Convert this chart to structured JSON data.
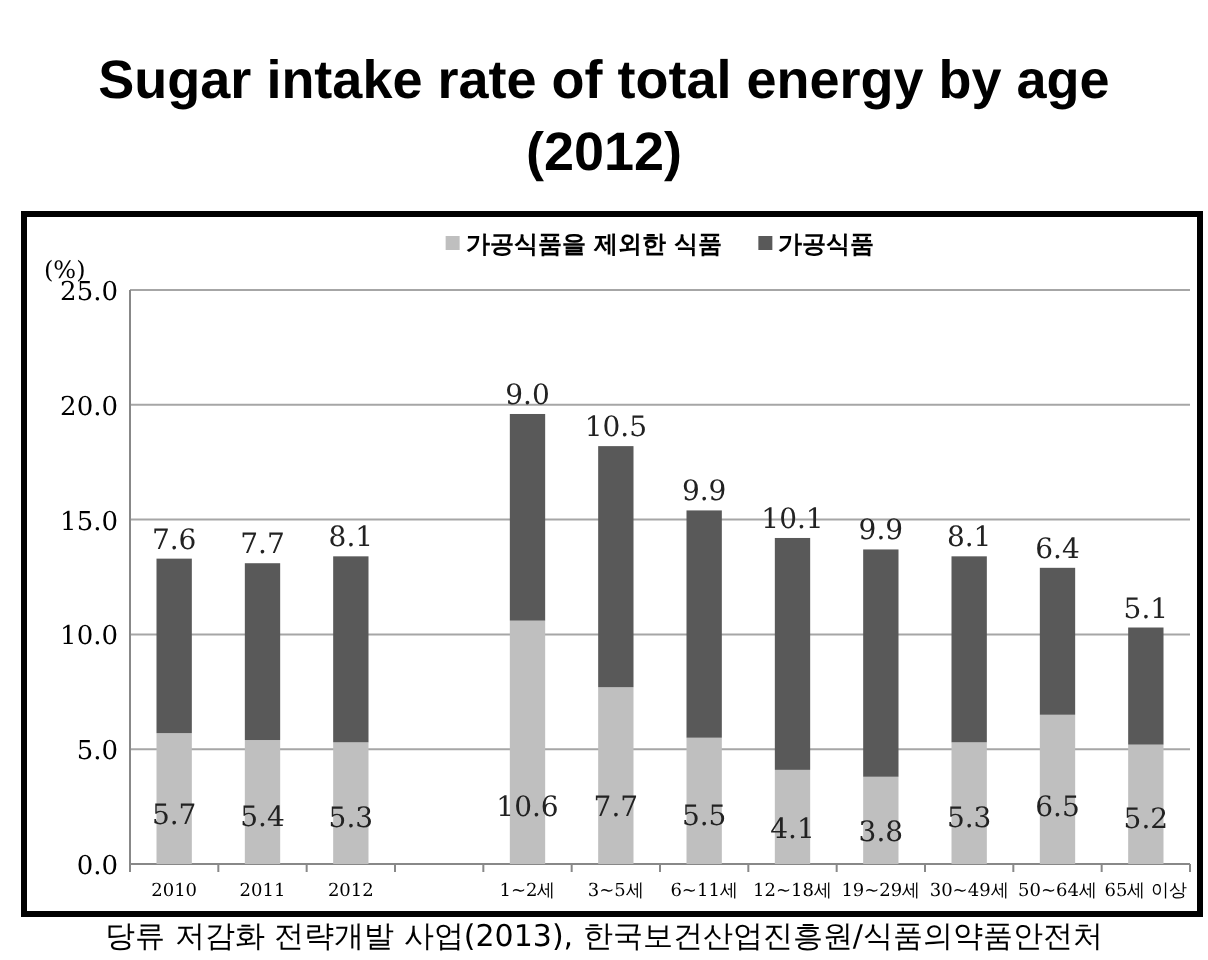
{
  "chart_data": {
    "type": "bar",
    "title": "Sugar intake rate of total energy by age (2012)",
    "ylabel": "(%)",
    "annotations": [
      "당류 저감화 전략개발 사업(2013), 한국보건산업진흥원/식품의약품안전처"
    ],
    "categories": [
      "2010",
      "2011",
      "2012",
      null,
      "1~2세",
      "3~5세",
      "6~11세",
      "12~18세",
      "19~29세",
      "30~49세",
      "50~64세",
      "65세 이상"
    ],
    "stacked": true,
    "series": [
      {
        "name": "가공식품을 제외한 식품",
        "color": "#bfbfbf",
        "values": [
          5.7,
          5.4,
          5.3,
          null,
          10.6,
          7.7,
          5.5,
          4.1,
          3.8,
          5.3,
          6.5,
          5.2
        ],
        "value_labels": [
          "5.7",
          "5.4",
          "5.3",
          null,
          "10.6",
          "7.7",
          "5.5",
          "4.1",
          "3.8",
          "5.3",
          "6.5",
          "5.2"
        ]
      },
      {
        "name": "가공식품",
        "color": "#595959",
        "values": [
          7.6,
          7.7,
          8.1,
          null,
          9.0,
          10.5,
          9.9,
          10.1,
          9.9,
          8.1,
          6.4,
          5.1
        ],
        "value_labels": [
          "7.6",
          "7.7",
          "8.1",
          null,
          "9.0",
          "10.5",
          "9.9",
          "10.1",
          "9.9",
          "8.1",
          "6.4",
          "5.1"
        ]
      }
    ],
    "ylim": [
      0,
      25
    ],
    "yticks": [
      {
        "value": 0,
        "label": "0.0"
      },
      {
        "value": 5,
        "label": "5.0"
      },
      {
        "value": 10,
        "label": "10.0"
      },
      {
        "value": 15,
        "label": "15.0"
      },
      {
        "value": 20,
        "label": "20.0"
      },
      {
        "value": 25,
        "label": "25.0"
      }
    ],
    "grid": "y",
    "legend": "top"
  }
}
